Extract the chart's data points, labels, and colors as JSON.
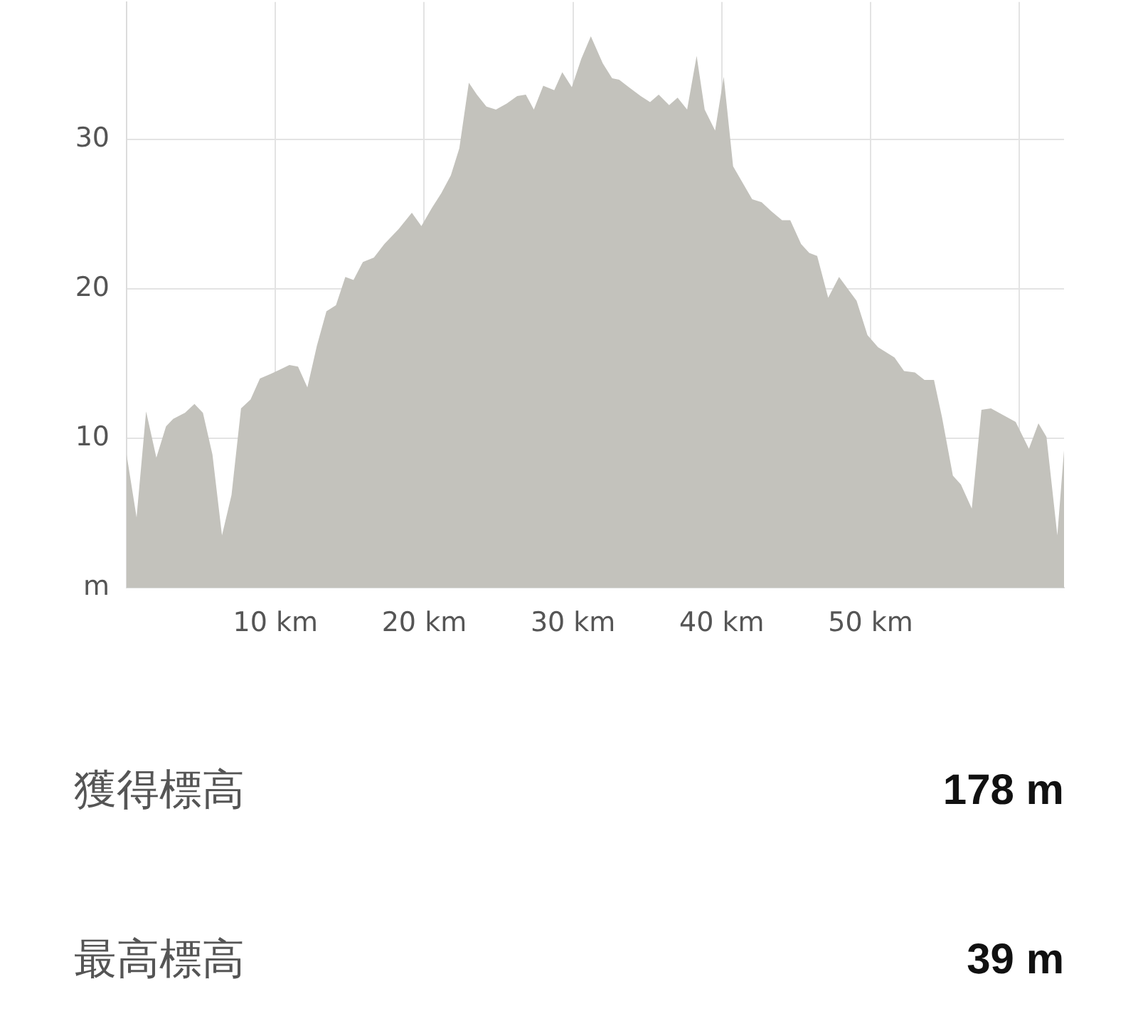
{
  "chart_data": {
    "type": "area",
    "color": "#c3c2bc",
    "x": [
      0,
      0.67,
      1.31,
      2.0,
      2.65,
      3.13,
      3.92,
      4.56,
      5.13,
      5.77,
      6.41,
      7.05,
      7.69,
      8.33,
      8.96,
      9.66,
      10.3,
      10.94,
      11.52,
      12.15,
      12.79,
      13.43,
      14.07,
      14.7,
      15.25,
      15.88,
      16.62,
      17.32,
      18.28,
      19.17,
      19.81,
      20.51,
      21.15,
      21.79,
      22.36,
      23.0,
      23.54,
      24.18,
      24.82,
      25.55,
      26.25,
      26.83,
      27.37,
      28.0,
      28.74,
      29.28,
      29.92,
      30.56,
      31.2,
      32.0,
      32.63,
      33.1,
      33.75,
      34.55,
      35.18,
      35.76,
      36.46,
      37.03,
      37.67,
      38.31,
      38.85,
      39.55,
      40.13,
      40.76,
      42.04,
      42.68,
      43.32,
      44.05,
      44.6,
      45.33,
      45.88,
      46.41,
      47.15,
      47.88,
      49.06,
      49.79,
      50.5,
      51.61,
      52.25,
      52.98,
      53.62,
      54.26,
      54.8,
      55.53,
      56.07,
      56.8,
      57.45,
      58.09,
      59.75,
      60.64,
      61.28,
      61.82,
      62.55,
      63.0
    ],
    "values": [
      8.9,
      4.7,
      11.8,
      8.7,
      10.8,
      11.3,
      11.7,
      12.3,
      11.7,
      8.9,
      3.5,
      6.2,
      12.0,
      12.6,
      14.0,
      14.3,
      14.6,
      14.9,
      14.8,
      13.4,
      16.2,
      18.5,
      18.9,
      20.8,
      20.6,
      21.8,
      22.1,
      23.0,
      24.0,
      25.1,
      24.2,
      25.4,
      26.4,
      27.6,
      29.4,
      33.8,
      33.0,
      32.2,
      32.0,
      32.4,
      32.9,
      33.0,
      32.0,
      33.6,
      33.3,
      34.5,
      33.5,
      35.4,
      36.9,
      35.1,
      34.1,
      34.0,
      33.5,
      32.9,
      32.5,
      33.0,
      32.3,
      32.8,
      32.0,
      35.6,
      32.0,
      30.6,
      34.2,
      28.2,
      26.0,
      25.8,
      25.2,
      24.6,
      24.6,
      23.0,
      22.4,
      22.2,
      19.4,
      20.8,
      19.2,
      16.9,
      16.1,
      15.4,
      14.5,
      14.4,
      13.9,
      13.9,
      11.4,
      7.5,
      6.9,
      5.3,
      11.9,
      12.0,
      11.1,
      9.3,
      11.0,
      10.1,
      3.5,
      9.2
    ],
    "xlim": [
      0,
      63
    ],
    "ylim": [
      0,
      39.2
    ],
    "xticks": [
      {
        "value": 10,
        "label": "10 km"
      },
      {
        "value": 20,
        "label": "20 km"
      },
      {
        "value": 30,
        "label": "30 km"
      },
      {
        "value": 40,
        "label": "40 km"
      },
      {
        "value": 50,
        "label": "50 km"
      },
      {
        "value": 60,
        "label": null
      }
    ],
    "yticks": [
      {
        "value": 0,
        "label": "m"
      },
      10,
      20,
      30
    ],
    "grid": true,
    "legend": false,
    "marker": "none",
    "annotations": [
      "獲得標高",
      "178 m",
      "最高標高",
      "39 m"
    ]
  }
}
